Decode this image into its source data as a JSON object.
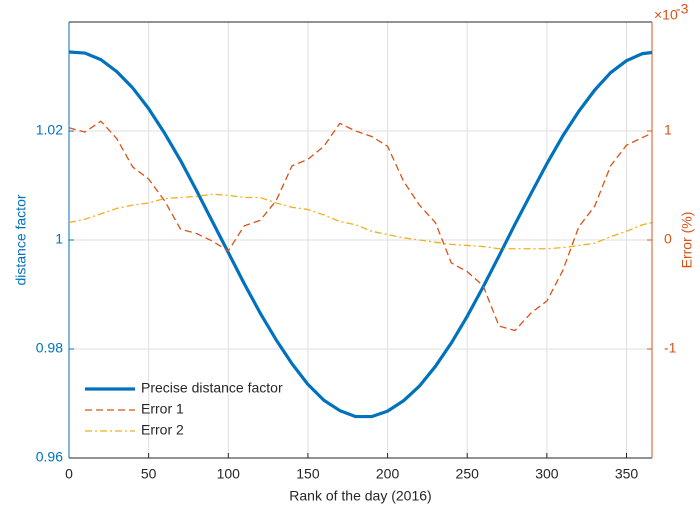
{
  "chart_data": {
    "type": "line",
    "x_label": "Rank of the day (2016)",
    "y_label": "distance factor",
    "y2_label": "Error (%)",
    "y2_exponent": {
      "base": "×10",
      "power": "-3"
    },
    "x": [
      0,
      10,
      20,
      30,
      40,
      50,
      60,
      70,
      80,
      90,
      100,
      110,
      120,
      130,
      140,
      150,
      160,
      170,
      180,
      190,
      200,
      210,
      220,
      230,
      240,
      250,
      260,
      270,
      280,
      290,
      300,
      310,
      320,
      330,
      340,
      350,
      360,
      366
    ],
    "series": [
      {
        "name": "Precise distance factor",
        "color": "#0072bd",
        "axis": "y",
        "style": "solid",
        "values": [
          1.0345,
          1.0343,
          1.0331,
          1.0309,
          1.0279,
          1.0241,
          1.0196,
          1.0146,
          1.0091,
          1.0034,
          0.9977,
          0.992,
          0.9866,
          0.9817,
          0.9773,
          0.9735,
          0.9706,
          0.9687,
          0.9676,
          0.9676,
          0.9686,
          0.9705,
          0.9732,
          0.9768,
          0.9811,
          0.986,
          0.9914,
          0.9971,
          1.0029,
          1.0085,
          1.014,
          1.0191,
          1.0236,
          1.0275,
          1.0307,
          1.0329,
          1.0342,
          1.0344
        ]
      },
      {
        "name": "Error 1",
        "color": "#d95319",
        "axis": "y2",
        "style": "dashed",
        "values": [
          1.03,
          0.99,
          1.09,
          0.93,
          0.67,
          0.56,
          0.36,
          0.1,
          0.06,
          -0.01,
          -0.1,
          0.13,
          0.18,
          0.36,
          0.68,
          0.74,
          0.86,
          1.07,
          1.0,
          0.95,
          0.86,
          0.54,
          0.32,
          0.16,
          -0.21,
          -0.29,
          -0.42,
          -0.79,
          -0.83,
          -0.67,
          -0.56,
          -0.28,
          0.12,
          0.31,
          0.68,
          0.87,
          0.94,
          0.98
        ]
      },
      {
        "name": "Error 2",
        "color": "#edb120",
        "axis": "y2",
        "style": "dashdot",
        "values": [
          0.16,
          0.19,
          0.24,
          0.29,
          0.32,
          0.34,
          0.38,
          0.39,
          0.4,
          0.42,
          0.41,
          0.39,
          0.39,
          0.34,
          0.3,
          0.28,
          0.23,
          0.17,
          0.14,
          0.08,
          0.05,
          0.02,
          0.0,
          -0.02,
          -0.04,
          -0.05,
          -0.06,
          -0.08,
          -0.08,
          -0.08,
          -0.08,
          -0.07,
          -0.05,
          -0.03,
          0.03,
          0.08,
          0.14,
          0.16
        ]
      }
    ],
    "xlim": [
      0,
      366
    ],
    "xticks": [
      0,
      50,
      100,
      150,
      200,
      250,
      300,
      350
    ],
    "ylim": [
      0.96,
      1.04
    ],
    "yticks": [
      0.96,
      0.98,
      1,
      1.02
    ],
    "y2lim": [
      -2,
      2
    ],
    "y2ticks": [
      -1,
      0,
      1
    ],
    "y_color": "#0072bd",
    "y2_color": "#d95319",
    "grid": true,
    "legend": "lower-left"
  }
}
